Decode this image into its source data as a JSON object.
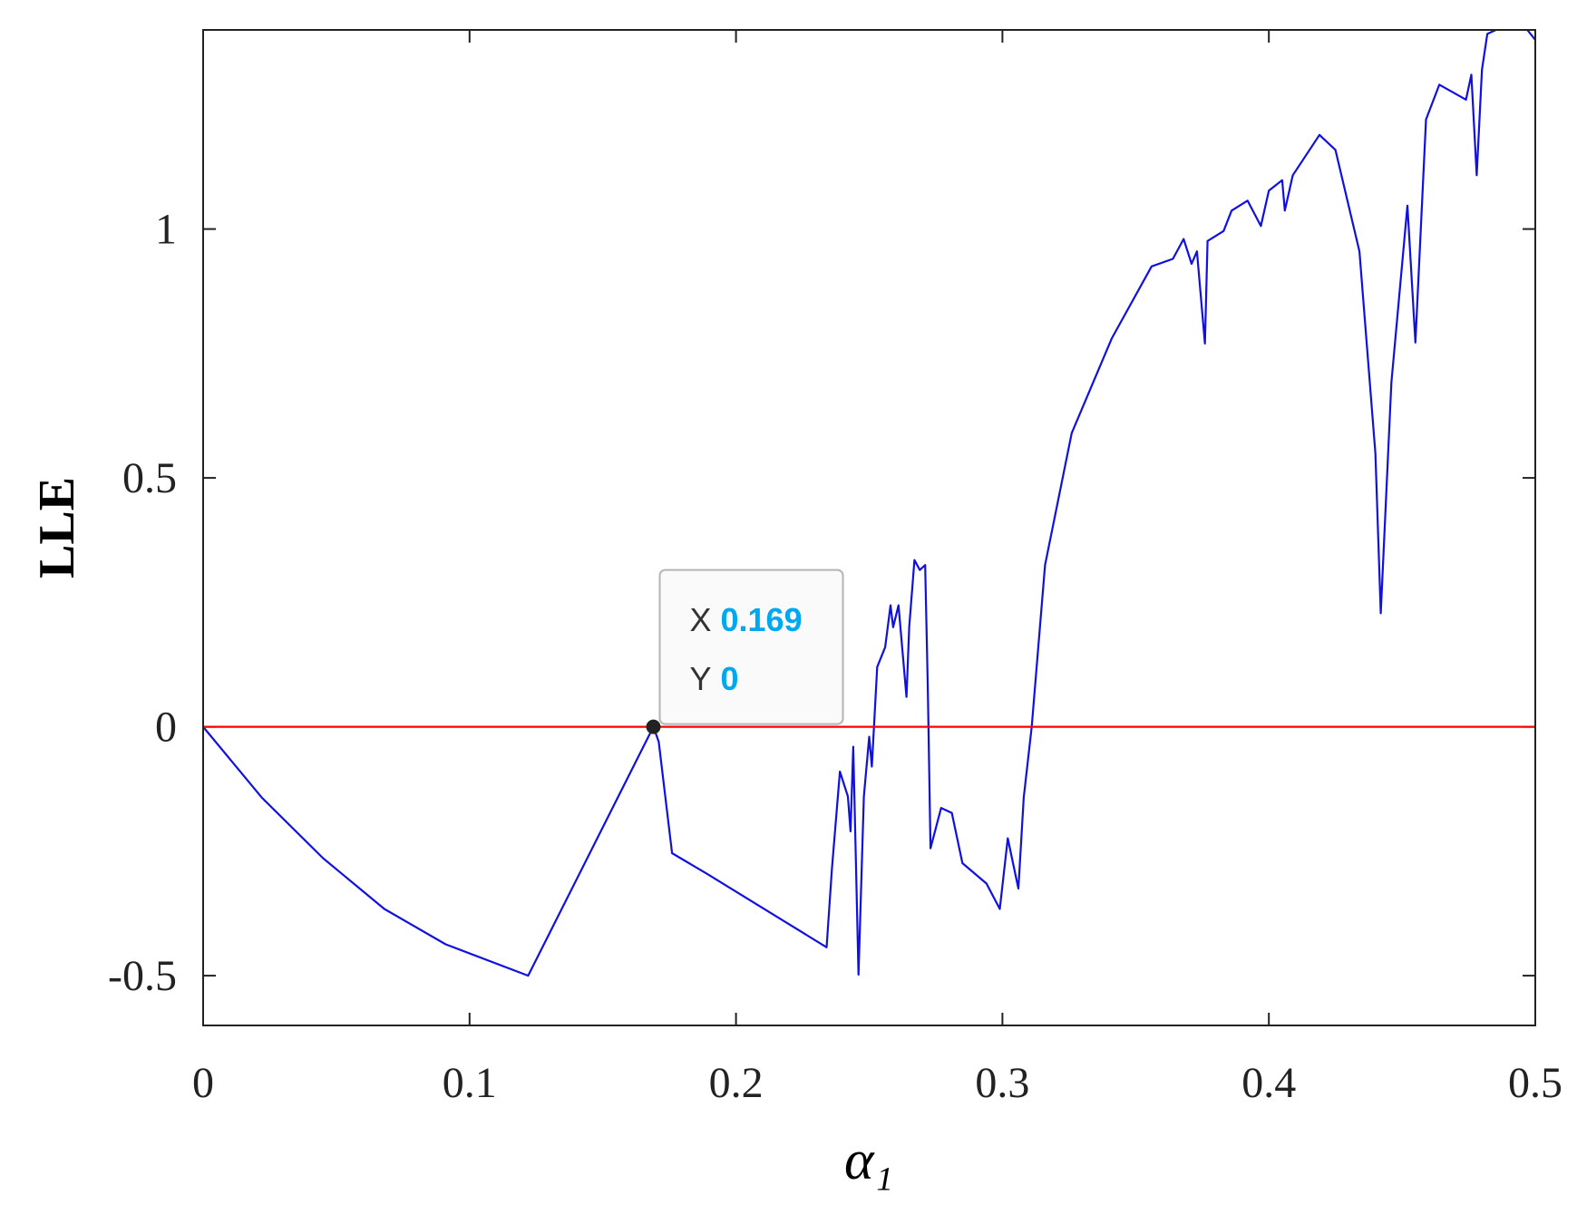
{
  "chart_data": {
    "type": "line",
    "xlabel": "α₁",
    "ylabel": "LLE",
    "x": [
      0,
      0.022,
      0.045,
      0.068,
      0.091,
      0.122,
      0.169,
      0.171,
      0.176,
      0.189,
      0.234,
      0.236,
      0.239,
      0.242,
      0.243,
      0.244,
      0.246,
      0.248,
      0.25,
      0.251,
      0.253,
      0.256,
      0.258,
      0.259,
      0.261,
      0.264,
      0.265,
      0.267,
      0.269,
      0.271,
      0.272,
      0.273,
      0.277,
      0.281,
      0.285,
      0.294,
      0.299,
      0.302,
      0.306,
      0.308,
      0.311,
      0.316,
      0.326,
      0.341,
      0.356,
      0.364,
      0.368,
      0.371,
      0.373,
      0.376,
      0.377,
      0.383,
      0.386,
      0.392,
      0.397,
      0.4,
      0.405,
      0.406,
      0.409,
      0.419,
      0.425,
      0.434,
      0.44,
      0.442,
      0.446,
      0.452,
      0.455,
      0.459,
      0.464,
      0.474,
      0.476,
      0.478,
      0.48,
      0.482,
      0.486,
      0.497,
      0.5
    ],
    "series": [
      {
        "color": "#1010e0",
        "values": [
          0,
          -0.142,
          -0.264,
          -0.366,
          -0.437,
          -0.5,
          0,
          -0.03,
          -0.254,
          -0.295,
          -0.443,
          -0.285,
          -0.09,
          -0.14,
          -0.21,
          -0.04,
          -0.498,
          -0.14,
          -0.02,
          -0.08,
          0.12,
          0.16,
          0.244,
          0.2,
          0.244,
          0.06,
          0.2,
          0.335,
          0.315,
          0.325,
          0.08,
          -0.244,
          -0.163,
          -0.173,
          -0.274,
          -0.315,
          -0.366,
          -0.224,
          -0.325,
          -0.142,
          0,
          0.325,
          0.59,
          0.78,
          0.925,
          0.94,
          0.98,
          0.93,
          0.955,
          0.77,
          0.976,
          0.996,
          1.037,
          1.057,
          1.006,
          1.077,
          1.098,
          1.037,
          1.108,
          1.189,
          1.159,
          0.955,
          0.549,
          0.228,
          0.691,
          1.047,
          0.772,
          1.22,
          1.29,
          1.26,
          1.31,
          1.108,
          1.32,
          1.392,
          1.402,
          1.4,
          1.38
        ]
      }
    ],
    "hline": {
      "value": 0,
      "color": "#ff0000"
    },
    "datatip": {
      "x_label": "X",
      "x": 0.169,
      "y_label": "Y",
      "y": 0
    },
    "xlim": [
      0,
      0.5
    ],
    "xticks": [
      0,
      0.1,
      0.2,
      0.3,
      0.4,
      0.5
    ],
    "ylim": [
      -0.6,
      1.4
    ],
    "yticks": [
      -0.5,
      0,
      0.5,
      1
    ]
  }
}
